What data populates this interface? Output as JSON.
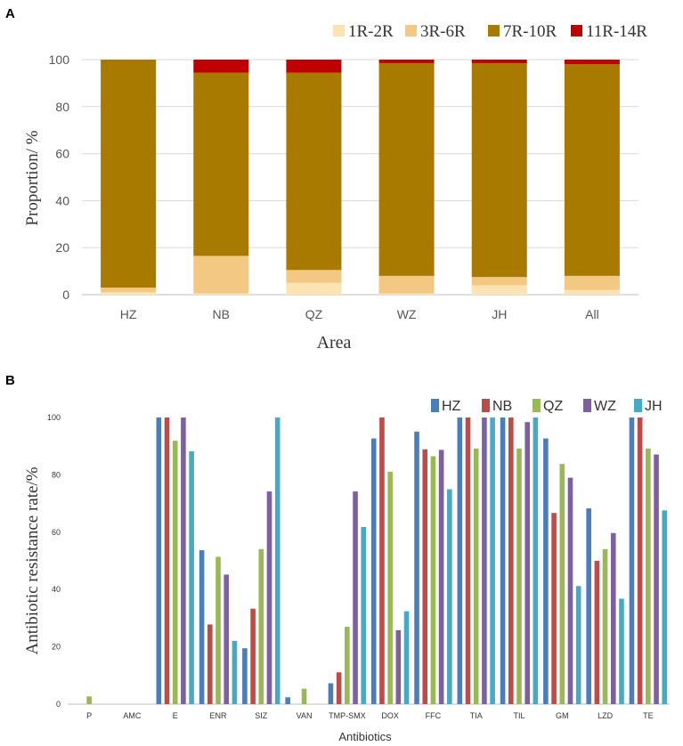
{
  "chart_data": [
    {
      "panel": "A",
      "type": "bar",
      "stacked": true,
      "title": "",
      "xlabel": "Area",
      "ylabel": "Proportion/ %",
      "ylim": [
        0,
        100
      ],
      "yticks": [
        0,
        20,
        40,
        60,
        80,
        100
      ],
      "categories": [
        "HZ",
        "NB",
        "QZ",
        "WZ",
        "JH",
        "All"
      ],
      "legend_position": "top-right",
      "series": [
        {
          "name": "1R-2R",
          "color": "#fbe3b4",
          "values": [
            1.0,
            0.5,
            5.0,
            0.5,
            4.0,
            2.0
          ]
        },
        {
          "name": "3R-6R",
          "color": "#f2c882",
          "values": [
            2.0,
            16.0,
            5.5,
            7.5,
            3.5,
            6.0
          ]
        },
        {
          "name": "7R-10R",
          "color": "#a97a00",
          "values": [
            97.0,
            78.0,
            84.0,
            90.5,
            91.0,
            90.0
          ]
        },
        {
          "name": "11R-14R",
          "color": "#c00000",
          "values": [
            0.0,
            5.5,
            5.5,
            1.5,
            1.5,
            2.0
          ]
        }
      ]
    },
    {
      "panel": "B",
      "type": "bar",
      "stacked": false,
      "title": "",
      "xlabel": "Antibiotics",
      "ylabel": "Antibiotic resistance rate/%",
      "ylim": [
        0,
        100
      ],
      "yticks": [
        0,
        20,
        40,
        60,
        80,
        100
      ],
      "categories": [
        "P",
        "AMC",
        "E",
        "ENR",
        "SIZ",
        "VAN",
        "TMP-SMX",
        "DOX",
        "FFC",
        "TIA",
        "TIL",
        "GM",
        "LZD",
        "TE"
      ],
      "legend_position": "top-right",
      "series": [
        {
          "name": "HZ",
          "color": "#4a7ebb",
          "values": [
            0,
            0,
            100,
            53.7,
            19.5,
            2.4,
            7.3,
            92.7,
            95.1,
            100,
            100,
            92.7,
            68.3,
            100
          ]
        },
        {
          "name": "NB",
          "color": "#be4b48",
          "values": [
            0,
            0,
            100,
            27.8,
            33.3,
            0,
            11.1,
            100,
            88.9,
            100,
            100,
            66.7,
            50.0,
            100
          ]
        },
        {
          "name": "QZ",
          "color": "#98b954",
          "values": [
            2.7,
            0,
            91.9,
            51.4,
            54.1,
            5.4,
            27.0,
            81.1,
            86.5,
            89.2,
            89.2,
            83.8,
            54.1,
            89.2
          ]
        },
        {
          "name": "WZ",
          "color": "#7d60a0",
          "values": [
            0,
            0,
            100,
            45.2,
            74.2,
            0,
            74.2,
            25.8,
            88.7,
            100,
            98.4,
            79.0,
            59.7,
            87.1
          ]
        },
        {
          "name": "JH",
          "color": "#46aac4",
          "values": [
            0,
            0,
            88.2,
            22.1,
            100,
            0,
            61.8,
            32.4,
            75.0,
            100,
            100,
            41.2,
            36.8,
            67.6
          ]
        }
      ]
    }
  ]
}
